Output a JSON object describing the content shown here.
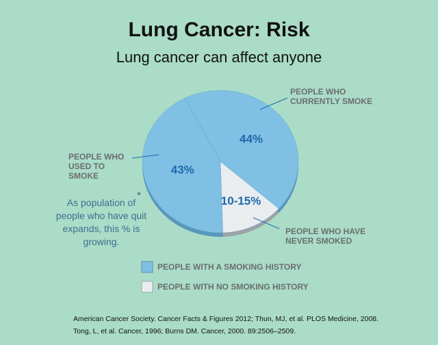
{
  "chart_data": {
    "type": "pie",
    "title": "Lung Cancer: Risk",
    "subtitle": "Lung cancer can affect anyone",
    "categories": [
      "PEOPLE WHO CURRENTLY SMOKE",
      "PEOPLE WHO HAVE NEVER SMOKED",
      "PEOPLE WHO USED TO SMOKE"
    ],
    "values": [
      44,
      13,
      43
    ],
    "value_labels": [
      "44%",
      "10-15%",
      "43%"
    ],
    "colors": [
      "#7fc0e4",
      "#e9edef",
      "#7fc0e4"
    ],
    "legend": [
      {
        "label": "PEOPLE WITH A SMOKING HISTORY",
        "color": "#7fc0e4"
      },
      {
        "label": "PEOPLE WITH NO SMOKING HISTORY",
        "color": "#e9edef"
      }
    ],
    "annotation": {
      "marker": "*",
      "text": "As population of people who have quit expands, this % is growing."
    },
    "sources": [
      "American Cancer Society. Cancer Facts & Figures 2012; Thun, MJ, et al. PLOS Medicine, 2008.",
      "Tong, L, et al. Cancer, 1996;  Burns DM. Cancer, 2000. 89:2506–2509."
    ]
  }
}
